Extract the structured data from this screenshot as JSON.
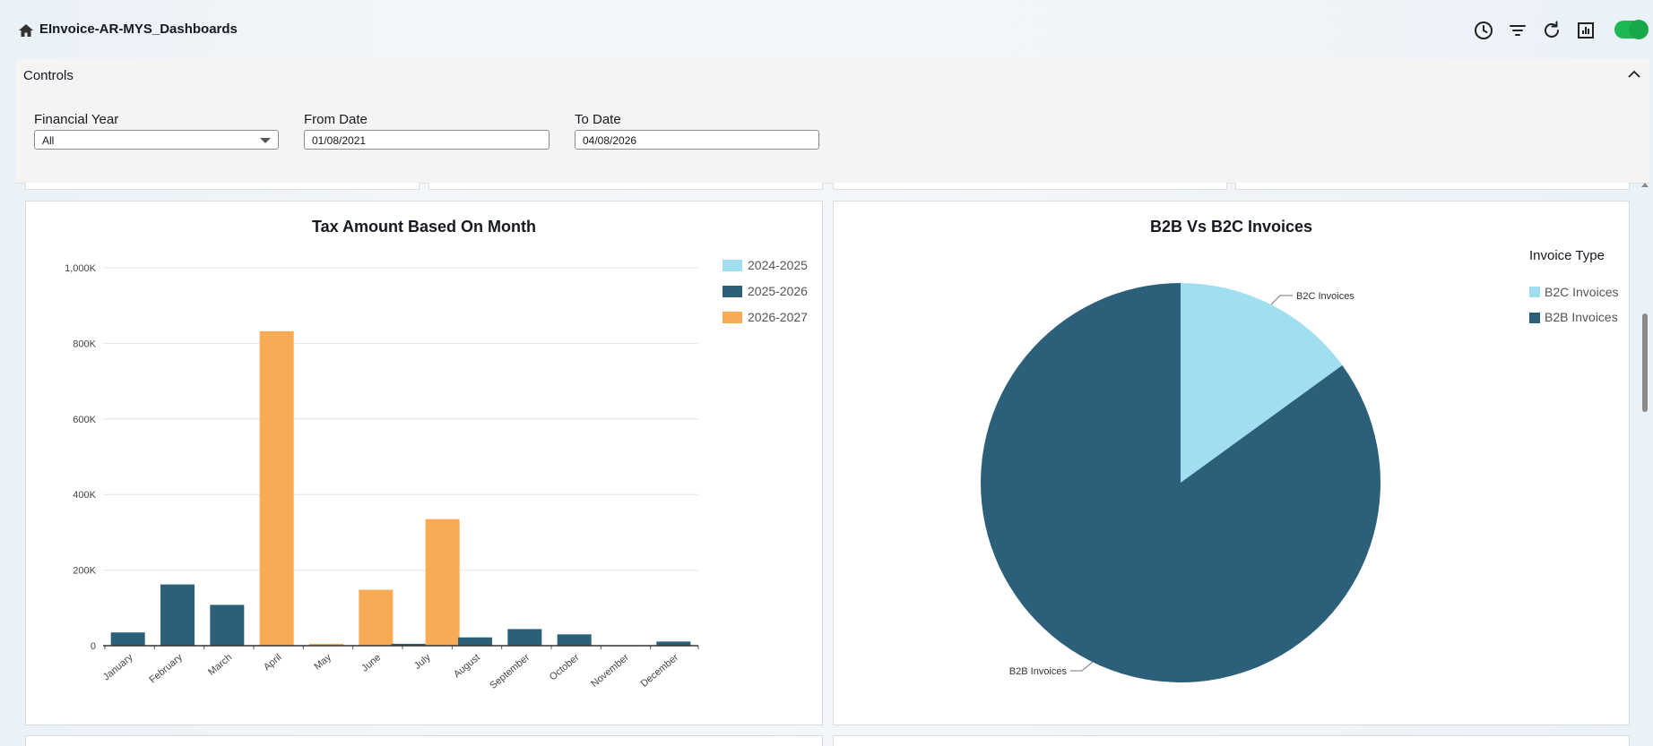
{
  "app": {
    "title": "EInvoice-AR-MYS_Dashboards"
  },
  "toolbar_icons": [
    "home-icon",
    "clock-icon",
    "filter-icon",
    "refresh-icon",
    "report-icon"
  ],
  "toggle": {
    "on": true,
    "color": "#1db954"
  },
  "controls": {
    "label": "Controls",
    "financial_year": {
      "label": "Financial Year",
      "value": "All"
    },
    "from_date": {
      "label": "From Date",
      "value": "01/08/2021"
    },
    "to_date": {
      "label": "To Date",
      "value": "04/08/2026"
    }
  },
  "tax_chart": {
    "title": "Tax Amount Based On Month",
    "legend": [
      "2024-2025",
      "2025-2026",
      "2026-2027"
    ]
  },
  "b2b_chart": {
    "title": "B2B Vs B2C Invoices",
    "legend_title": "Invoice Type",
    "legend": [
      "B2C Invoices",
      "B2B Invoices"
    ],
    "labels": {
      "b2c": "B2C Invoices",
      "b2b": "B2B Invoices"
    }
  },
  "colors": {
    "light_blue": "#a1def0",
    "dark_blue": "#2b5f7a",
    "orange": "#f6ab54"
  },
  "chart_data": [
    {
      "type": "bar",
      "title": "Tax Amount Based On Month",
      "xlabel": "",
      "ylabel": "",
      "ylim": [
        0,
        1000000
      ],
      "y_ticks": [
        "0",
        "200K",
        "400K",
        "600K",
        "800K",
        "1,000K"
      ],
      "y_tick_values": [
        0,
        200000,
        400000,
        600000,
        800000,
        1000000
      ],
      "grid": true,
      "legend_position": "top-right",
      "categories": [
        "January",
        "February",
        "March",
        "April",
        "May",
        "June",
        "July",
        "August",
        "September",
        "October",
        "November",
        "December"
      ],
      "series": [
        {
          "name": "2024-2025",
          "color": "#a1def0",
          "values": [
            0,
            0,
            0,
            0,
            0,
            0,
            0,
            0,
            0,
            0,
            0,
            0
          ]
        },
        {
          "name": "2025-2026",
          "color": "#2b5f7a",
          "values": [
            35000,
            162000,
            108000,
            0,
            0,
            0,
            5000,
            22000,
            44000,
            30000,
            1000,
            11000
          ]
        },
        {
          "name": "2026-2027",
          "color": "#f6ab54",
          "values": [
            0,
            0,
            0,
            832000,
            5000,
            148000,
            335000,
            0,
            0,
            0,
            0,
            0
          ]
        }
      ]
    },
    {
      "type": "pie",
      "title": "B2B Vs B2C Invoices",
      "legend_title": "Invoice Type",
      "legend_position": "top-right",
      "slices": [
        {
          "label": "B2C Invoices",
          "value": 15,
          "color": "#a1def0"
        },
        {
          "label": "B2B Invoices",
          "value": 85,
          "color": "#2b5f7a"
        }
      ]
    }
  ]
}
